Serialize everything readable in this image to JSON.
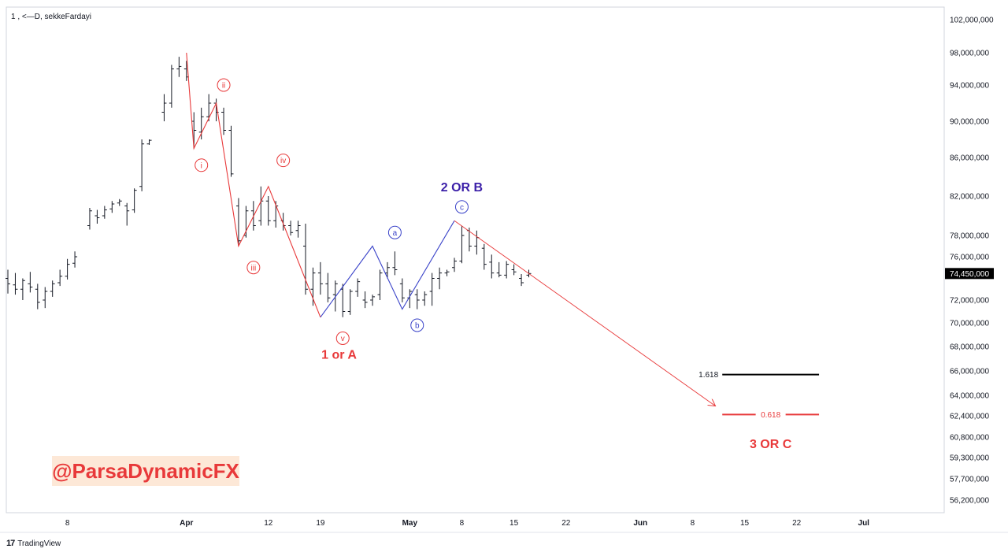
{
  "header": {
    "symbol_line": "1 , <—D, sekkeFardayi"
  },
  "branding": {
    "logo_icon": "tradingview-logo-icon",
    "label": "TradingView"
  },
  "watermark": {
    "text": "@ParsaDynamicFX",
    "color": "#e8393a",
    "background": "#fde8d7"
  },
  "colors": {
    "bearish": "#e8393a",
    "corrective": "#3b44c9",
    "bar": "#131722",
    "accent_title": "#3b1fa8"
  },
  "chart_data": {
    "type": "ohlc-bar",
    "title": "1 , <—D, sekkeFardayi",
    "price_axis": {
      "ticks": [
        {
          "label": "102,000,000",
          "value": 102000000
        },
        {
          "label": "98,000,000",
          "value": 98000000
        },
        {
          "label": "94,000,000",
          "value": 94000000
        },
        {
          "label": "90,000,000",
          "value": 90000000
        },
        {
          "label": "86,000,000",
          "value": 86000000
        },
        {
          "label": "82,000,000",
          "value": 82000000
        },
        {
          "label": "78,000,000",
          "value": 78000000
        },
        {
          "label": "76,000,000",
          "value": 76000000
        },
        {
          "label": "72,000,000",
          "value": 72000000
        },
        {
          "label": "70,000,000",
          "value": 70000000
        },
        {
          "label": "68,000,000",
          "value": 68000000
        },
        {
          "label": "66,000,000",
          "value": 66000000
        },
        {
          "label": "64,000,000",
          "value": 64000000
        },
        {
          "label": "62,400,000",
          "value": 62400000
        },
        {
          "label": "60,800,000",
          "value": 60800000
        },
        {
          "label": "59,300,000",
          "value": 59300000
        },
        {
          "label": "57,700,000",
          "value": 57700000
        },
        {
          "label": "56,200,000",
          "value": 56200000
        }
      ],
      "current_price": {
        "label": "74,450,000",
        "value": 74450000
      }
    },
    "time_axis": {
      "ticks": [
        {
          "label": "8",
          "day": 8
        },
        {
          "label": "Apr",
          "day": 24
        },
        {
          "label": "12",
          "day": 35
        },
        {
          "label": "19",
          "day": 42
        },
        {
          "label": "May",
          "day": 54
        },
        {
          "label": "8",
          "day": 61
        },
        {
          "label": "15",
          "day": 68
        },
        {
          "label": "22",
          "day": 75
        },
        {
          "label": "Jun",
          "day": 85
        },
        {
          "label": "8",
          "day": 92
        },
        {
          "label": "15",
          "day": 99
        },
        {
          "label": "22",
          "day": 106
        },
        {
          "label": "Jul",
          "day": 115
        }
      ]
    },
    "ohlc": [
      {
        "d": 0,
        "o": 74000000,
        "h": 74800000,
        "l": 72600000,
        "c": 73500000
      },
      {
        "d": 1,
        "o": 73400000,
        "h": 74500000,
        "l": 72500000,
        "c": 73000000
      },
      {
        "d": 2,
        "o": 73000000,
        "h": 74000000,
        "l": 72000000,
        "c": 73800000
      },
      {
        "d": 3,
        "o": 73500000,
        "h": 74600000,
        "l": 72700000,
        "c": 73200000
      },
      {
        "d": 4,
        "o": 73000000,
        "h": 73500000,
        "l": 71200000,
        "c": 71800000
      },
      {
        "d": 5,
        "o": 72000000,
        "h": 73200000,
        "l": 71300000,
        "c": 72800000
      },
      {
        "d": 6,
        "o": 72800000,
        "h": 73800000,
        "l": 72300000,
        "c": 73500000
      },
      {
        "d": 7,
        "o": 73600000,
        "h": 74800000,
        "l": 73300000,
        "c": 74200000
      },
      {
        "d": 8,
        "o": 74200000,
        "h": 75800000,
        "l": 73900000,
        "c": 75300000
      },
      {
        "d": 9,
        "o": 75400000,
        "h": 76500000,
        "l": 75000000,
        "c": 76000000
      },
      {
        "d": 11,
        "o": 79000000,
        "h": 80800000,
        "l": 78600000,
        "c": 80500000
      },
      {
        "d": 12,
        "o": 80000000,
        "h": 80600000,
        "l": 79200000,
        "c": 79800000
      },
      {
        "d": 13,
        "o": 80000000,
        "h": 81000000,
        "l": 79700000,
        "c": 80600000
      },
      {
        "d": 14,
        "o": 80700000,
        "h": 81500000,
        "l": 80300000,
        "c": 81200000
      },
      {
        "d": 15,
        "o": 81300000,
        "h": 81700000,
        "l": 81000000,
        "c": 81500000
      },
      {
        "d": 16,
        "o": 81000000,
        "h": 81300000,
        "l": 79000000,
        "c": 80500000
      },
      {
        "d": 17,
        "o": 80600000,
        "h": 82800000,
        "l": 80300000,
        "c": 82600000
      },
      {
        "d": 18,
        "o": 83000000,
        "h": 88000000,
        "l": 82500000,
        "c": 87500000
      },
      {
        "d": 19,
        "o": 87500000,
        "h": 88000000,
        "l": 87400000,
        "c": 87900000
      },
      {
        "d": 21,
        "o": 91000000,
        "h": 93000000,
        "l": 90000000,
        "c": 92000000
      },
      {
        "d": 22,
        "o": 92000000,
        "h": 96500000,
        "l": 91500000,
        "c": 96000000
      },
      {
        "d": 23,
        "o": 96000000,
        "h": 97500000,
        "l": 95000000,
        "c": 96300000
      },
      {
        "d": 24,
        "o": 96000000,
        "h": 97000000,
        "l": 94500000,
        "c": 95000000
      },
      {
        "d": 25,
        "o": 90000000,
        "h": 91000000,
        "l": 87000000,
        "c": 89000000
      },
      {
        "d": 26,
        "o": 88800000,
        "h": 91500000,
        "l": 88000000,
        "c": 90500000
      },
      {
        "d": 27,
        "o": 90500000,
        "h": 93000000,
        "l": 90000000,
        "c": 92000000
      },
      {
        "d": 28,
        "o": 92000000,
        "h": 92500000,
        "l": 90000000,
        "c": 91000000
      },
      {
        "d": 29,
        "o": 91000000,
        "h": 91500000,
        "l": 88500000,
        "c": 89000000
      },
      {
        "d": 30,
        "o": 89000000,
        "h": 89500000,
        "l": 84000000,
        "c": 84300000
      },
      {
        "d": 31,
        "o": 81000000,
        "h": 81800000,
        "l": 77000000,
        "c": 77500000
      },
      {
        "d": 32,
        "o": 78000000,
        "h": 81000000,
        "l": 77800000,
        "c": 80500000
      },
      {
        "d": 33,
        "o": 80500000,
        "h": 81500000,
        "l": 78500000,
        "c": 79000000
      },
      {
        "d": 34,
        "o": 79500000,
        "h": 83000000,
        "l": 79000000,
        "c": 81500000
      },
      {
        "d": 35,
        "o": 81500000,
        "h": 82000000,
        "l": 79000000,
        "c": 79500000
      },
      {
        "d": 36,
        "o": 79500000,
        "h": 81500000,
        "l": 78800000,
        "c": 81000000
      },
      {
        "d": 37,
        "o": 79500000,
        "h": 80300000,
        "l": 78500000,
        "c": 79000000
      },
      {
        "d": 38,
        "o": 79000000,
        "h": 79500000,
        "l": 78000000,
        "c": 78300000
      },
      {
        "d": 39,
        "o": 78500000,
        "h": 79500000,
        "l": 77800000,
        "c": 79000000
      },
      {
        "d": 40,
        "o": 77000000,
        "h": 79200000,
        "l": 72500000,
        "c": 73000000
      },
      {
        "d": 41,
        "o": 73000000,
        "h": 75000000,
        "l": 71500000,
        "c": 74500000
      },
      {
        "d": 42,
        "o": 74500000,
        "h": 75500000,
        "l": 72500000,
        "c": 73500000
      },
      {
        "d": 43,
        "o": 73500000,
        "h": 74500000,
        "l": 71800000,
        "c": 72200000
      },
      {
        "d": 44,
        "o": 72500000,
        "h": 73800000,
        "l": 71000000,
        "c": 73500000
      },
      {
        "d": 45,
        "o": 73000000,
        "h": 73500000,
        "l": 70500000,
        "c": 71000000
      },
      {
        "d": 46,
        "o": 71000000,
        "h": 73000000,
        "l": 70700000,
        "c": 72800000
      },
      {
        "d": 47,
        "o": 72800000,
        "h": 74000000,
        "l": 72300000,
        "c": 73700000
      },
      {
        "d": 48,
        "o": 72000000,
        "h": 72800000,
        "l": 71300000,
        "c": 71800000
      },
      {
        "d": 49,
        "o": 72000000,
        "h": 72500000,
        "l": 71500000,
        "c": 72300000
      },
      {
        "d": 50,
        "o": 72500000,
        "h": 74800000,
        "l": 72000000,
        "c": 74500000
      },
      {
        "d": 51,
        "o": 74500000,
        "h": 75500000,
        "l": 74000000,
        "c": 75000000
      },
      {
        "d": 52,
        "o": 75000000,
        "h": 76500000,
        "l": 74300000,
        "c": 74800000
      },
      {
        "d": 53,
        "o": 73500000,
        "h": 74000000,
        "l": 71800000,
        "c": 72200000
      },
      {
        "d": 54,
        "o": 72200000,
        "h": 73000000,
        "l": 71300000,
        "c": 72800000
      },
      {
        "d": 55,
        "o": 72500000,
        "h": 73000000,
        "l": 71200000,
        "c": 72000000
      },
      {
        "d": 56,
        "o": 72000000,
        "h": 72800000,
        "l": 71500000,
        "c": 72500000
      },
      {
        "d": 57,
        "o": 72800000,
        "h": 74500000,
        "l": 71500000,
        "c": 74000000
      },
      {
        "d": 58,
        "o": 74000000,
        "h": 75000000,
        "l": 73000000,
        "c": 74500000
      },
      {
        "d": 59,
        "o": 74500000,
        "h": 74800000,
        "l": 74200000,
        "c": 74600000
      },
      {
        "d": 60,
        "o": 75000000,
        "h": 75900000,
        "l": 74600000,
        "c": 75600000
      },
      {
        "d": 61,
        "o": 75600000,
        "h": 79000000,
        "l": 75400000,
        "c": 78000000
      },
      {
        "d": 62,
        "o": 78500000,
        "h": 78800000,
        "l": 76500000,
        "c": 77000000
      },
      {
        "d": 63,
        "o": 77000000,
        "h": 78500000,
        "l": 76200000,
        "c": 77800000
      },
      {
        "d": 64,
        "o": 76800000,
        "h": 77200000,
        "l": 74800000,
        "c": 75300000
      },
      {
        "d": 65,
        "o": 75500000,
        "h": 76200000,
        "l": 74000000,
        "c": 74500000
      },
      {
        "d": 66,
        "o": 74500000,
        "h": 75500000,
        "l": 74100000,
        "c": 74300000
      },
      {
        "d": 67,
        "o": 74300000,
        "h": 75600000,
        "l": 74000000,
        "c": 75300000
      },
      {
        "d": 68,
        "o": 74800000,
        "h": 75300000,
        "l": 74300000,
        "c": 74600000
      },
      {
        "d": 69,
        "o": 74000000,
        "h": 74400000,
        "l": 73300000,
        "c": 73600000
      },
      {
        "d": 70,
        "o": 74300000,
        "h": 74800000,
        "l": 74100000,
        "c": 74450000
      }
    ],
    "wave_paths": [
      {
        "name": "impulse",
        "color": "#e8393a",
        "points": [
          {
            "d": 24,
            "p": 98000000
          },
          {
            "d": 25,
            "p": 87000000
          },
          {
            "d": 28,
            "p": 92000000
          },
          {
            "d": 31,
            "p": 77000000
          },
          {
            "d": 35,
            "p": 83000000
          },
          {
            "d": 42,
            "p": 70500000
          }
        ]
      },
      {
        "name": "corrective",
        "color": "#3b44c9",
        "points": [
          {
            "d": 42,
            "p": 70500000
          },
          {
            "d": 49,
            "p": 77000000
          },
          {
            "d": 53,
            "p": 71200000
          },
          {
            "d": 60,
            "p": 79500000
          }
        ]
      },
      {
        "name": "projection",
        "color": "#e8393a",
        "arrow": true,
        "points": [
          {
            "d": 60,
            "p": 79500000
          },
          {
            "d": 95,
            "p": 63200000
          }
        ]
      }
    ],
    "wave_labels": [
      {
        "text": "i",
        "d": 26,
        "p": 85200000,
        "color": "#e8393a"
      },
      {
        "text": "ii",
        "d": 29,
        "p": 94000000,
        "color": "#e8393a"
      },
      {
        "text": "iii",
        "d": 33,
        "p": 75000000,
        "color": "#e8393a"
      },
      {
        "text": "iv",
        "d": 37,
        "p": 85700000,
        "color": "#e8393a"
      },
      {
        "text": "v",
        "d": 45,
        "p": 68700000,
        "color": "#e8393a"
      },
      {
        "text": "a",
        "d": 52,
        "p": 78300000,
        "color": "#3b44c9"
      },
      {
        "text": "b",
        "d": 55,
        "p": 69800000,
        "color": "#3b44c9"
      },
      {
        "text": "c",
        "d": 61,
        "p": 80900000,
        "color": "#3b44c9"
      }
    ],
    "annotations": [
      {
        "text": "1 or A",
        "d": 44.5,
        "p": 67000000,
        "color": "#e8393a"
      },
      {
        "text": "2 OR B",
        "d": 61,
        "p": 82500000,
        "color": "#3b1fa8"
      },
      {
        "text": "3 OR C",
        "d": 102.5,
        "p": 60000000,
        "color": "#e8393a"
      }
    ],
    "fib_levels": [
      {
        "label": "1.618",
        "p": 65700000,
        "d_from": 96,
        "d_to": 109,
        "color": "#000000"
      },
      {
        "label": "0.618",
        "p": 62500000,
        "d_from": 96,
        "d_to": 109,
        "color": "#e8393a"
      }
    ]
  }
}
